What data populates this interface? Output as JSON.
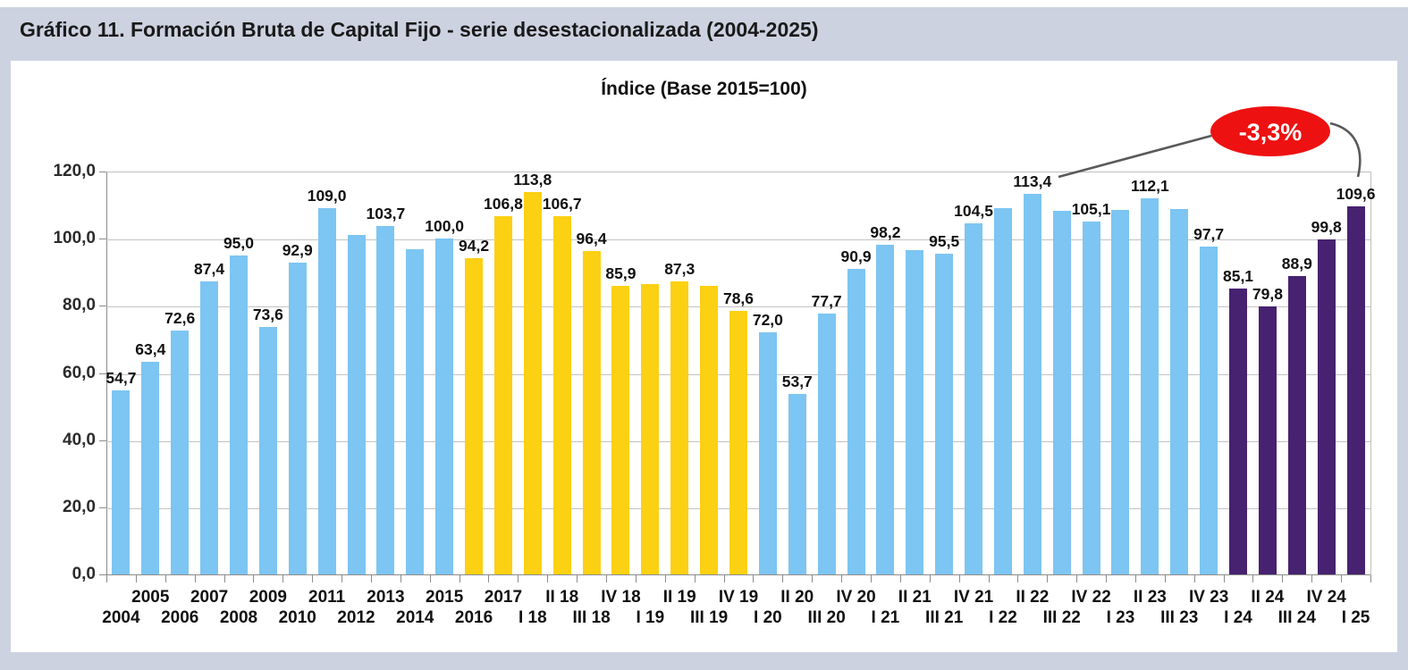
{
  "header": {
    "title": "Gráfico 11. Formación Bruta de Capital Fijo - serie desestacionalizada (2004-2025)"
  },
  "chart_data": {
    "type": "bar",
    "title": "Índice (Base 2015=100)",
    "xlabel": "",
    "ylabel": "",
    "ylim": [
      0,
      120
    ],
    "ytick_step": 20,
    "ytick_labels": [
      "0,0",
      "20,0",
      "40,0",
      "60,0",
      "80,0",
      "100,0",
      "120,0"
    ],
    "grid": true,
    "legend": "none",
    "group_colors": {
      "blue": "#7DC5F2",
      "yellow": "#FCD013",
      "purple": "#462270"
    },
    "points": [
      {
        "category": "2004",
        "value": 54.7,
        "label": "54,7",
        "group": "blue"
      },
      {
        "category": "2005",
        "value": 63.4,
        "label": "63,4",
        "group": "blue"
      },
      {
        "category": "2006",
        "value": 72.6,
        "label": "72,6",
        "group": "blue"
      },
      {
        "category": "2007",
        "value": 87.4,
        "label": "87,4",
        "group": "blue"
      },
      {
        "category": "2008",
        "value": 95.0,
        "label": "95,0",
        "group": "blue"
      },
      {
        "category": "2009",
        "value": 73.6,
        "label": "73,6",
        "group": "blue"
      },
      {
        "category": "2010",
        "value": 92.9,
        "label": "92,9",
        "group": "blue"
      },
      {
        "category": "2011",
        "value": 109.0,
        "label": "109,0",
        "group": "blue"
      },
      {
        "category": "2012",
        "value": 101.2,
        "label": "",
        "group": "blue"
      },
      {
        "category": "2013",
        "value": 103.7,
        "label": "103,7",
        "group": "blue"
      },
      {
        "category": "2014",
        "value": 96.9,
        "label": "",
        "group": "blue"
      },
      {
        "category": "2015",
        "value": 100.0,
        "label": "100,0",
        "group": "blue"
      },
      {
        "category": "2016",
        "value": 94.2,
        "label": "94,2",
        "group": "yellow"
      },
      {
        "category": "2017",
        "value": 106.8,
        "label": "106,8",
        "group": "yellow"
      },
      {
        "category": "I 18",
        "value": 113.8,
        "label": "113,8",
        "group": "yellow"
      },
      {
        "category": "II 18",
        "value": 106.7,
        "label": "106,7",
        "group": "yellow"
      },
      {
        "category": "III 18",
        "value": 96.4,
        "label": "96,4",
        "group": "yellow"
      },
      {
        "category": "IV 18",
        "value": 85.9,
        "label": "85,9",
        "group": "yellow"
      },
      {
        "category": "I 19",
        "value": 86.6,
        "label": "",
        "group": "yellow"
      },
      {
        "category": "II 19",
        "value": 87.3,
        "label": "87,3",
        "group": "yellow"
      },
      {
        "category": "III 19",
        "value": 86.0,
        "label": "",
        "group": "yellow"
      },
      {
        "category": "IV 19",
        "value": 78.6,
        "label": "78,6",
        "group": "yellow"
      },
      {
        "category": "I 20",
        "value": 72.0,
        "label": "72,0",
        "group": "blue"
      },
      {
        "category": "II 20",
        "value": 53.7,
        "label": "53,7",
        "group": "blue"
      },
      {
        "category": "III 20",
        "value": 77.7,
        "label": "77,7",
        "group": "blue"
      },
      {
        "category": "IV 20",
        "value": 90.9,
        "label": "90,9",
        "group": "blue"
      },
      {
        "category": "I 21",
        "value": 98.2,
        "label": "98,2",
        "group": "blue"
      },
      {
        "category": "II 21",
        "value": 96.6,
        "label": "",
        "group": "blue"
      },
      {
        "category": "III 21",
        "value": 95.5,
        "label": "95,5",
        "group": "blue"
      },
      {
        "category": "IV 21",
        "value": 104.5,
        "label": "104,5",
        "group": "blue"
      },
      {
        "category": "I 22",
        "value": 109.1,
        "label": "",
        "group": "blue"
      },
      {
        "category": "II 22",
        "value": 113.4,
        "label": "113,4",
        "group": "blue"
      },
      {
        "category": "III 22",
        "value": 108.4,
        "label": "",
        "group": "blue"
      },
      {
        "category": "IV 22",
        "value": 105.1,
        "label": "105,1",
        "group": "blue"
      },
      {
        "category": "I 23",
        "value": 108.6,
        "label": "",
        "group": "blue"
      },
      {
        "category": "II 23",
        "value": 112.1,
        "label": "112,1",
        "group": "blue"
      },
      {
        "category": "III 23",
        "value": 108.8,
        "label": "",
        "group": "blue"
      },
      {
        "category": "IV 23",
        "value": 97.7,
        "label": "97,7",
        "group": "blue"
      },
      {
        "category": "I 24",
        "value": 85.1,
        "label": "85,1",
        "group": "purple"
      },
      {
        "category": "II 24",
        "value": 79.8,
        "label": "79,8",
        "group": "purple"
      },
      {
        "category": "III 24",
        "value": 88.9,
        "label": "88,9",
        "group": "purple"
      },
      {
        "category": "IV 24",
        "value": 99.8,
        "label": "99,8",
        "group": "purple"
      },
      {
        "category": "I 25",
        "value": 109.6,
        "label": "109,6",
        "group": "purple"
      }
    ],
    "annotation": {
      "text": "-3,3%",
      "bubble_color": "#EE1111",
      "text_color": "#FFFFFF",
      "line_color": "#58595B",
      "connects": [
        "113,4",
        "109,6"
      ]
    }
  }
}
